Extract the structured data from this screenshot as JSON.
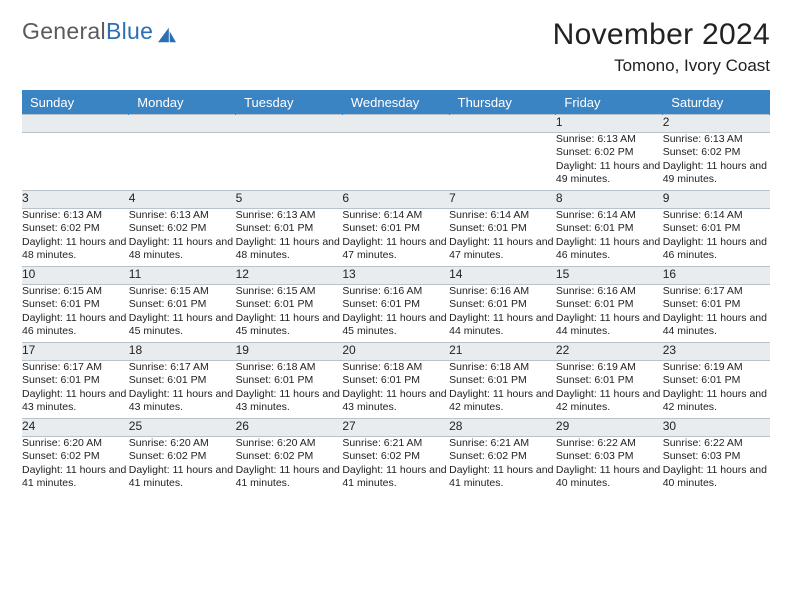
{
  "brand": {
    "name_gray": "General",
    "name_blue": "Blue"
  },
  "title": "November 2024",
  "location": "Tomono, Ivory Coast",
  "colors": {
    "header_bg": "#3b84c4",
    "header_text": "#ffffff",
    "daynum_bg": "#e8ecef",
    "border": "#b9c3c9",
    "text": "#222222",
    "logo_gray": "#5b5b5b",
    "logo_blue": "#2d6fb5",
    "page_bg": "#ffffff"
  },
  "weekdays": [
    "Sunday",
    "Monday",
    "Tuesday",
    "Wednesday",
    "Thursday",
    "Friday",
    "Saturday"
  ],
  "weeks": [
    [
      null,
      null,
      null,
      null,
      null,
      {
        "n": "1",
        "sr": "6:13 AM",
        "ss": "6:02 PM",
        "dl": "11 hours and 49 minutes."
      },
      {
        "n": "2",
        "sr": "6:13 AM",
        "ss": "6:02 PM",
        "dl": "11 hours and 49 minutes."
      }
    ],
    [
      {
        "n": "3",
        "sr": "6:13 AM",
        "ss": "6:02 PM",
        "dl": "11 hours and 48 minutes."
      },
      {
        "n": "4",
        "sr": "6:13 AM",
        "ss": "6:02 PM",
        "dl": "11 hours and 48 minutes."
      },
      {
        "n": "5",
        "sr": "6:13 AM",
        "ss": "6:01 PM",
        "dl": "11 hours and 48 minutes."
      },
      {
        "n": "6",
        "sr": "6:14 AM",
        "ss": "6:01 PM",
        "dl": "11 hours and 47 minutes."
      },
      {
        "n": "7",
        "sr": "6:14 AM",
        "ss": "6:01 PM",
        "dl": "11 hours and 47 minutes."
      },
      {
        "n": "8",
        "sr": "6:14 AM",
        "ss": "6:01 PM",
        "dl": "11 hours and 46 minutes."
      },
      {
        "n": "9",
        "sr": "6:14 AM",
        "ss": "6:01 PM",
        "dl": "11 hours and 46 minutes."
      }
    ],
    [
      {
        "n": "10",
        "sr": "6:15 AM",
        "ss": "6:01 PM",
        "dl": "11 hours and 46 minutes."
      },
      {
        "n": "11",
        "sr": "6:15 AM",
        "ss": "6:01 PM",
        "dl": "11 hours and 45 minutes."
      },
      {
        "n": "12",
        "sr": "6:15 AM",
        "ss": "6:01 PM",
        "dl": "11 hours and 45 minutes."
      },
      {
        "n": "13",
        "sr": "6:16 AM",
        "ss": "6:01 PM",
        "dl": "11 hours and 45 minutes."
      },
      {
        "n": "14",
        "sr": "6:16 AM",
        "ss": "6:01 PM",
        "dl": "11 hours and 44 minutes."
      },
      {
        "n": "15",
        "sr": "6:16 AM",
        "ss": "6:01 PM",
        "dl": "11 hours and 44 minutes."
      },
      {
        "n": "16",
        "sr": "6:17 AM",
        "ss": "6:01 PM",
        "dl": "11 hours and 44 minutes."
      }
    ],
    [
      {
        "n": "17",
        "sr": "6:17 AM",
        "ss": "6:01 PM",
        "dl": "11 hours and 43 minutes."
      },
      {
        "n": "18",
        "sr": "6:17 AM",
        "ss": "6:01 PM",
        "dl": "11 hours and 43 minutes."
      },
      {
        "n": "19",
        "sr": "6:18 AM",
        "ss": "6:01 PM",
        "dl": "11 hours and 43 minutes."
      },
      {
        "n": "20",
        "sr": "6:18 AM",
        "ss": "6:01 PM",
        "dl": "11 hours and 43 minutes."
      },
      {
        "n": "21",
        "sr": "6:18 AM",
        "ss": "6:01 PM",
        "dl": "11 hours and 42 minutes."
      },
      {
        "n": "22",
        "sr": "6:19 AM",
        "ss": "6:01 PM",
        "dl": "11 hours and 42 minutes."
      },
      {
        "n": "23",
        "sr": "6:19 AM",
        "ss": "6:01 PM",
        "dl": "11 hours and 42 minutes."
      }
    ],
    [
      {
        "n": "24",
        "sr": "6:20 AM",
        "ss": "6:02 PM",
        "dl": "11 hours and 41 minutes."
      },
      {
        "n": "25",
        "sr": "6:20 AM",
        "ss": "6:02 PM",
        "dl": "11 hours and 41 minutes."
      },
      {
        "n": "26",
        "sr": "6:20 AM",
        "ss": "6:02 PM",
        "dl": "11 hours and 41 minutes."
      },
      {
        "n": "27",
        "sr": "6:21 AM",
        "ss": "6:02 PM",
        "dl": "11 hours and 41 minutes."
      },
      {
        "n": "28",
        "sr": "6:21 AM",
        "ss": "6:02 PM",
        "dl": "11 hours and 41 minutes."
      },
      {
        "n": "29",
        "sr": "6:22 AM",
        "ss": "6:03 PM",
        "dl": "11 hours and 40 minutes."
      },
      {
        "n": "30",
        "sr": "6:22 AM",
        "ss": "6:03 PM",
        "dl": "11 hours and 40 minutes."
      }
    ]
  ],
  "labels": {
    "sunrise": "Sunrise:",
    "sunset": "Sunset:",
    "daylight": "Daylight:"
  }
}
